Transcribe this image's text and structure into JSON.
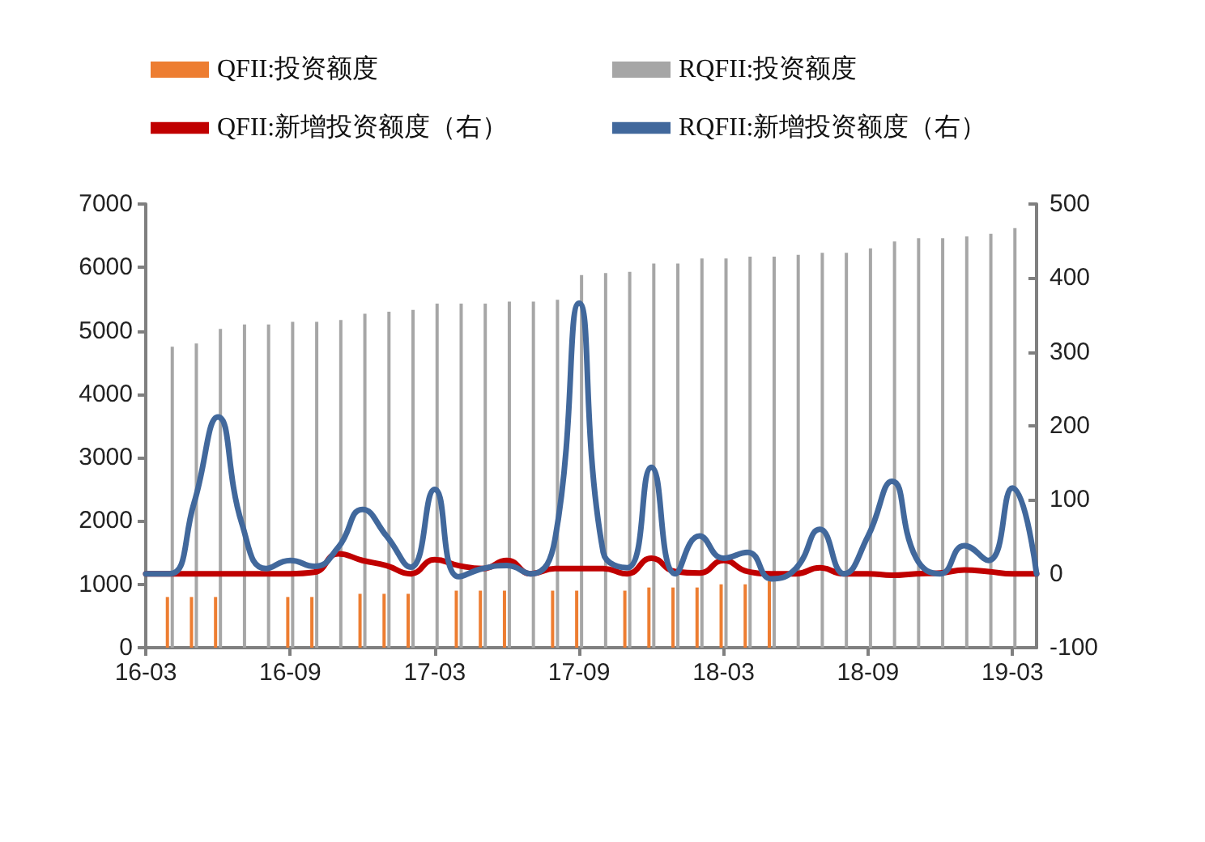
{
  "chart_data": {
    "type": "bar",
    "categories": [
      "16-03",
      null,
      null,
      null,
      null,
      null,
      "16-09",
      null,
      null,
      null,
      null,
      null,
      "17-03",
      null,
      null,
      null,
      null,
      null,
      "17-09",
      null,
      null,
      null,
      null,
      null,
      "18-03",
      null,
      null,
      null,
      null,
      null,
      "18-09",
      null,
      null,
      null,
      null,
      null,
      "19-03",
      null
    ],
    "series": [
      {
        "name": "QFII:投资额度",
        "color": "#ed7d31",
        "values": [
          null,
          800,
          800,
          800,
          null,
          null,
          800,
          800,
          null,
          850,
          850,
          850,
          null,
          900,
          900,
          900,
          null,
          900,
          900,
          null,
          900,
          950,
          950,
          950,
          1000,
          1000,
          1050,
          null,
          null,
          null,
          null,
          null,
          null,
          null,
          null,
          null,
          null,
          null
        ]
      },
      {
        "name": "RQFII:投资额度",
        "color": "#a6a6a6",
        "values": [
          null,
          4750,
          4800,
          5030,
          5100,
          5100,
          5140,
          5140,
          5170,
          5270,
          5300,
          5330,
          5430,
          5430,
          5430,
          5460,
          5460,
          5490,
          5880,
          5910,
          5930,
          6060,
          6060,
          6140,
          6140,
          6170,
          6170,
          6200,
          6230,
          6230,
          6300,
          6410,
          6460,
          6460,
          6490,
          6530,
          6620,
          null
        ]
      },
      {
        "name": "QFII:新增投资额度（右）",
        "type": "line",
        "axis": "y2",
        "color": "#c00000",
        "values": [
          0,
          0,
          0,
          0,
          0,
          0,
          0,
          2,
          27,
          18,
          11,
          0,
          19,
          11,
          7,
          18,
          0,
          7,
          7,
          7,
          0,
          21,
          3,
          1,
          18,
          3,
          0,
          0,
          8,
          0,
          0,
          -2,
          0,
          1,
          5,
          3,
          0,
          0
        ]
      },
      {
        "name": "RQFII:新增投资额度（右）",
        "type": "line",
        "axis": "y2",
        "color": "#41689c",
        "values": [
          0,
          0,
          95,
          212,
          67,
          7,
          18,
          10,
          36,
          87,
          51,
          9,
          114,
          -4,
          7,
          11,
          0,
          47,
          366,
          29,
          8,
          144,
          0,
          51,
          21,
          29,
          -7,
          7,
          60,
          0,
          51,
          125,
          21,
          0,
          38,
          18,
          116,
          0
        ]
      }
    ],
    "ylim": [
      0,
      7000
    ],
    "yticks": [
      0,
      1000,
      2000,
      3000,
      4000,
      5000,
      6000,
      7000
    ],
    "y2lim": [
      -100,
      500
    ],
    "y2ticks": [
      -100,
      0,
      100,
      200,
      300,
      400,
      500
    ],
    "legend": "top",
    "grid": false,
    "marker": "none",
    "line_style": "solid"
  }
}
